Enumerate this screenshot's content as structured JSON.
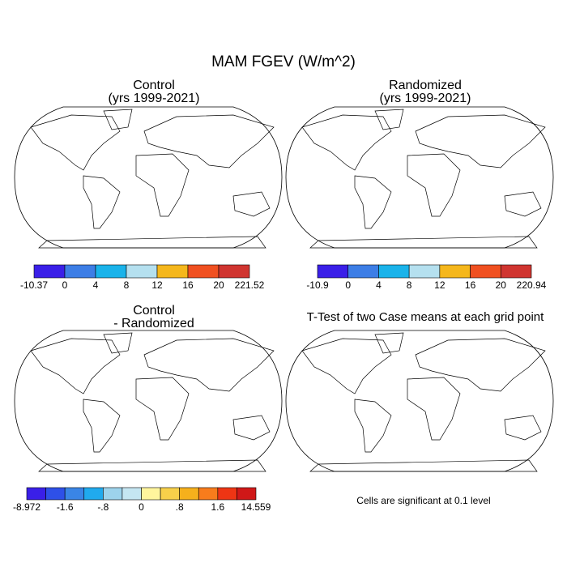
{
  "title": "MAM FGEV (W/m^2)",
  "panels": [
    {
      "title": [
        "Control",
        "(yrs 1999-2021)"
      ],
      "colorbar": {
        "colors": [
          "#3a1fe8",
          "#3d7ee6",
          "#1ab3ea",
          "#b5e0ef",
          "#f5b71c",
          "#f05020",
          "#d03530"
        ],
        "labels": [
          "-10.37",
          "0",
          "4",
          "8",
          "12",
          "16",
          "20",
          "221.52"
        ]
      }
    },
    {
      "title": [
        "Randomized",
        "(yrs 1999-2021)"
      ],
      "colorbar": {
        "colors": [
          "#3a1fe8",
          "#3d7ee6",
          "#1ab3ea",
          "#b5e0ef",
          "#f5b71c",
          "#f05020",
          "#d03530"
        ],
        "labels": [
          "-10.9",
          "0",
          "4",
          "8",
          "12",
          "16",
          "20",
          "220.94"
        ]
      }
    },
    {
      "title": [
        "Control",
        "- Randomized"
      ],
      "colorbar": {
        "colors": [
          "#3a1fe8",
          "#2e50e8",
          "#3a85e6",
          "#20aaee",
          "#9dd3ec",
          "#c5e6f2",
          "#fff59d",
          "#f7d04a",
          "#f6b01c",
          "#f87c1c",
          "#ee3514",
          "#d01818"
        ],
        "labels": [
          "-8.972",
          "-1.6",
          "-.8",
          "0",
          ".8",
          "1.6",
          "14.559"
        ]
      }
    },
    {
      "title": [
        "T-Test of two Case means at each grid point"
      ],
      "note": "Cells are significant at 0.1 level"
    }
  ]
}
